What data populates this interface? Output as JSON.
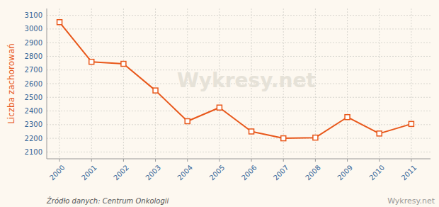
{
  "chart_data": {
    "type": "line",
    "ylabel": "Liczba zachorowań",
    "annotations": [
      "Źródło danych:  Centrum Onkologii",
      "Wykresy.net"
    ],
    "x": [
      2000,
      2001,
      2002,
      2003,
      2004,
      2005,
      2006,
      2007,
      2008,
      2009,
      2010,
      2011
    ],
    "values": [
      3050,
      2760,
      2745,
      2550,
      2325,
      2425,
      2250,
      2200,
      2205,
      2355,
      2235,
      2305
    ],
    "color": "#e8571a",
    "marker": "square",
    "xlim": [
      1999.6,
      2011.6
    ],
    "xticks": [
      2000,
      2001,
      2002,
      2003,
      2004,
      2005,
      2006,
      2007,
      2008,
      2009,
      2010,
      2011
    ],
    "ylim": [
      2050,
      3150
    ],
    "yticks": [
      2100,
      2200,
      2300,
      2400,
      2500,
      2600,
      2700,
      2800,
      2900,
      3000,
      3100
    ],
    "grid": true
  }
}
